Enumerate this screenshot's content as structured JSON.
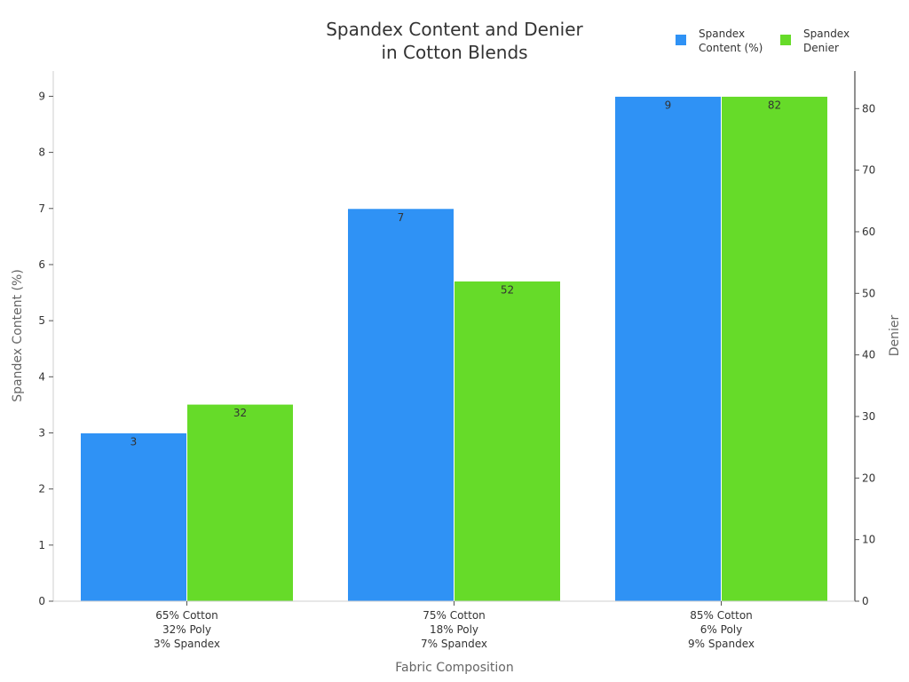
{
  "chart_data": {
    "type": "bar",
    "title": [
      "Spandex Content and Denier",
      "in Cotton Blends"
    ],
    "xlabel": "Fabric Composition",
    "ylabel": "Spandex Content (%)",
    "y2label": "Denier",
    "categories": [
      [
        "65% Cotton",
        "32% Poly",
        "3% Spandex"
      ],
      [
        "75% Cotton",
        "18% Poly",
        "7% Spandex"
      ],
      [
        "85% Cotton",
        "6% Poly",
        "9% Spandex"
      ]
    ],
    "series": [
      {
        "name": [
          "Spandex",
          "Content (%)"
        ],
        "axis": "left",
        "color": "#2f92f5",
        "values": [
          3,
          7,
          9
        ],
        "labels": [
          "3",
          "7",
          "9"
        ]
      },
      {
        "name": [
          "Spandex",
          "Denier"
        ],
        "axis": "right",
        "color": "#66db29",
        "values": [
          32,
          52,
          82
        ],
        "labels": [
          "32",
          "52",
          "82"
        ]
      }
    ],
    "ylim": [
      0,
      9.45
    ],
    "y2lim": [
      0,
      86.1
    ],
    "yticks": [
      "0",
      "1",
      "2",
      "3",
      "4",
      "5",
      "6",
      "7",
      "8",
      "9"
    ],
    "y2ticks": [
      "0",
      "10",
      "20",
      "30",
      "40",
      "50",
      "60",
      "70",
      "80"
    ],
    "grid": false,
    "legend": "top-right"
  }
}
